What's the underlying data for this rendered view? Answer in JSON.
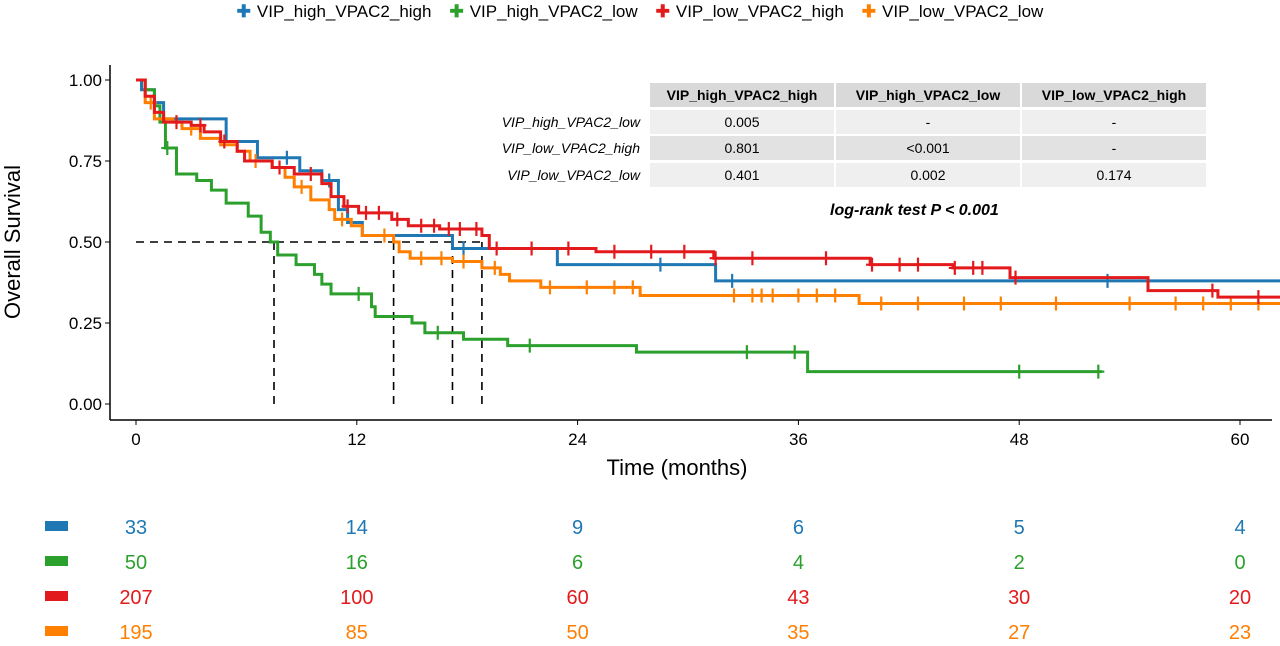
{
  "chart_data": {
    "type": "line",
    "subtype": "kaplan-meier step",
    "xlabel": "Time (months)",
    "ylabel": "Overall Survival",
    "xlim": [
      -2.5,
      62.8
    ],
    "ylim": [
      0,
      1
    ],
    "x_ticks": [
      0,
      12,
      24,
      36,
      48,
      60
    ],
    "y_ticks": [
      "0.00",
      "0.25",
      "0.50",
      "0.75",
      "1.00"
    ],
    "grid": false,
    "legend_position": "top",
    "median_lines": [
      7.5,
      14,
      17.2,
      18.8
    ],
    "series": [
      {
        "name": "VIP_high_VPAC2_high",
        "color": "#1f78b4",
        "steps": [
          [
            0,
            1
          ],
          [
            0.3,
            0.97
          ],
          [
            1,
            0.93
          ],
          [
            1.5,
            0.88
          ],
          [
            4.9,
            0.81
          ],
          [
            6.6,
            0.76
          ],
          [
            8.9,
            0.72
          ],
          [
            10.1,
            0.69
          ],
          [
            11.0,
            0.6
          ],
          [
            11.5,
            0.56
          ],
          [
            12.3,
            0.52
          ],
          [
            17.2,
            0.48
          ],
          [
            22.9,
            0.43
          ],
          [
            31.5,
            0.38
          ]
        ],
        "end": 62.8,
        "censored": [
          1.0,
          8.2,
          10.5,
          17.8,
          28.5,
          32.4,
          52.8,
          62.5
        ]
      },
      {
        "name": "VIP_high_VPAC2_low",
        "color": "#2ca02c",
        "steps": [
          [
            0,
            1
          ],
          [
            0.5,
            0.97
          ],
          [
            1.0,
            0.92
          ],
          [
            1.3,
            0.87
          ],
          [
            1.6,
            0.79
          ],
          [
            2.2,
            0.71
          ],
          [
            3.3,
            0.69
          ],
          [
            4.1,
            0.66
          ],
          [
            4.9,
            0.62
          ],
          [
            6.1,
            0.58
          ],
          [
            6.8,
            0.53
          ],
          [
            7.3,
            0.5
          ],
          [
            7.7,
            0.46
          ],
          [
            8.7,
            0.43
          ],
          [
            9.7,
            0.4
          ],
          [
            10.1,
            0.37
          ],
          [
            10.6,
            0.34
          ],
          [
            12.8,
            0.3
          ],
          [
            13.0,
            0.27
          ],
          [
            15.0,
            0.25
          ],
          [
            15.7,
            0.22
          ],
          [
            17.8,
            0.2
          ],
          [
            20.2,
            0.18
          ],
          [
            27.2,
            0.16
          ],
          [
            36.5,
            0.1
          ]
        ],
        "end": 52.5,
        "censored": [
          1.7,
          12.1,
          16.4,
          21.4,
          33.2,
          35.8,
          48.0,
          52.3
        ]
      },
      {
        "name": "VIP_low_VPAC2_high",
        "color": "#e31a1c",
        "steps": [
          [
            0,
            1
          ],
          [
            0.5,
            0.95
          ],
          [
            1.0,
            0.9
          ],
          [
            1.5,
            0.87
          ],
          [
            3.0,
            0.86
          ],
          [
            3.7,
            0.84
          ],
          [
            4.6,
            0.81
          ],
          [
            5.5,
            0.78
          ],
          [
            5.9,
            0.75
          ],
          [
            7.4,
            0.73
          ],
          [
            8.6,
            0.71
          ],
          [
            10.1,
            0.68
          ],
          [
            10.6,
            0.64
          ],
          [
            11.3,
            0.61
          ],
          [
            12.1,
            0.59
          ],
          [
            13.9,
            0.57
          ],
          [
            14.8,
            0.55
          ],
          [
            16.5,
            0.54
          ],
          [
            18.8,
            0.52
          ],
          [
            19.2,
            0.48
          ],
          [
            25,
            0.47
          ],
          [
            31.4,
            0.45
          ],
          [
            39.9,
            0.43
          ],
          [
            44.4,
            0.42
          ],
          [
            47.5,
            0.39
          ],
          [
            55,
            0.35
          ],
          [
            58.8,
            0.33
          ]
        ],
        "end": 62.8,
        "censored": [
          2.2,
          3.5,
          4.8,
          7.8,
          9.5,
          11.5,
          12.5,
          13.2,
          14.2,
          15.5,
          16.2,
          17.0,
          17.6,
          18.5,
          19.6,
          21.5,
          23.5,
          26.0,
          28.0,
          29.8,
          31.5,
          33.5,
          37.5,
          40.0,
          41.5,
          42.5,
          44.5,
          45.5,
          46.0,
          47.8,
          58.5,
          61.0,
          62.3
        ]
      },
      {
        "name": "VIP_low_VPAC2_low",
        "color": "#ff7f00",
        "steps": [
          [
            0,
            1
          ],
          [
            0.5,
            0.93
          ],
          [
            1.0,
            0.88
          ],
          [
            2.0,
            0.87
          ],
          [
            2.5,
            0.85
          ],
          [
            3.5,
            0.82
          ],
          [
            4.6,
            0.8
          ],
          [
            5.5,
            0.78
          ],
          [
            6.2,
            0.75
          ],
          [
            7.4,
            0.73
          ],
          [
            8.1,
            0.7
          ],
          [
            8.6,
            0.67
          ],
          [
            9.5,
            0.63
          ],
          [
            10.5,
            0.6
          ],
          [
            10.8,
            0.57
          ],
          [
            11.7,
            0.55
          ],
          [
            12.3,
            0.52
          ],
          [
            14.0,
            0.5
          ],
          [
            14.3,
            0.47
          ],
          [
            14.9,
            0.45
          ],
          [
            17.2,
            0.44
          ],
          [
            18.8,
            0.42
          ],
          [
            19.8,
            0.4
          ],
          [
            20.3,
            0.38
          ],
          [
            22.0,
            0.36
          ],
          [
            27.4,
            0.335
          ],
          [
            39.3,
            0.31
          ]
        ],
        "end": 62.8,
        "censored": [
          0.8,
          3.0,
          6.5,
          9.0,
          11.2,
          13.5,
          15.5,
          16.6,
          17.8,
          19.5,
          22.5,
          24.5,
          26.0,
          27.0,
          32.5,
          33.5,
          34.0,
          34.6,
          36.0,
          37.0,
          38.0,
          40.5,
          42.5,
          45.0,
          47.0,
          50.0,
          54.0,
          56.5,
          58.0,
          59.5,
          61.0,
          62.3
        ]
      }
    ],
    "pairwise_table": {
      "columns": [
        "VIP_high_VPAC2_high",
        "VIP_high_VPAC2_low",
        "VIP_low_VPAC2_high"
      ],
      "rows": [
        {
          "label": "VIP_high_VPAC2_low",
          "values": [
            "0.005",
            "-",
            "-"
          ]
        },
        {
          "label": "VIP_low_VPAC2_high",
          "values": [
            "0.801",
            "<0.001",
            "-"
          ]
        },
        {
          "label": "VIP_low_VPAC2_low",
          "values": [
            "0.401",
            "0.002",
            "0.174"
          ]
        }
      ]
    },
    "annotation": "log-rank test P < 0.001",
    "risk_table": {
      "times": [
        0,
        12,
        24,
        36,
        48,
        60
      ],
      "rows": [
        {
          "color": "#1f78b4",
          "values": [
            "33",
            "14",
            "9",
            "6",
            "5",
            "4"
          ]
        },
        {
          "color": "#2ca02c",
          "values": [
            "50",
            "16",
            "6",
            "4",
            "2",
            "0"
          ]
        },
        {
          "color": "#e31a1c",
          "values": [
            "207",
            "100",
            "60",
            "43",
            "30",
            "20"
          ]
        },
        {
          "color": "#ff7f00",
          "values": [
            "195",
            "85",
            "50",
            "35",
            "27",
            "23"
          ]
        }
      ]
    }
  }
}
